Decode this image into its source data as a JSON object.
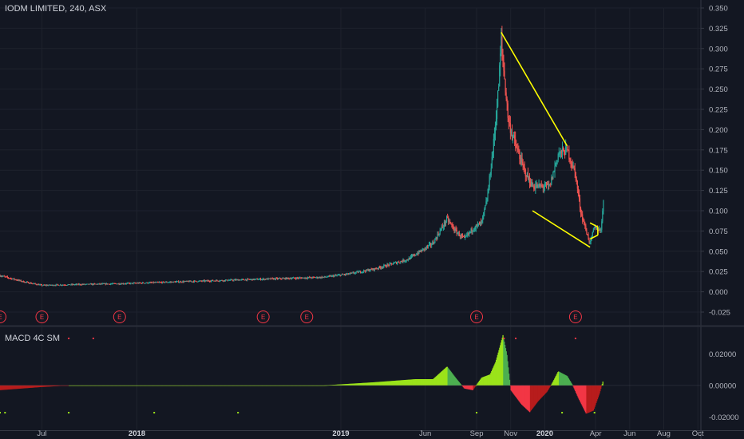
{
  "header": {
    "title": "IODM LIMITED, 240, ASX"
  },
  "indicator": {
    "title": "MACD 4C SM"
  },
  "colors": {
    "background": "#131722",
    "up": "#26a69a",
    "down": "#ef5350",
    "trendline": "#ffff00",
    "macd_pos_strong": "#9be31a",
    "macd_pos_weak": "#4caf50",
    "macd_neg_strong": "#f23645",
    "macd_neg_weak": "#b71c1c",
    "earnings": "#f23645"
  },
  "chart_data": [
    {
      "type": "candlestick",
      "title": "IODM LIMITED, 240, ASX",
      "y_axis_ticks": [
        "0.350",
        "0.325",
        "0.300",
        "0.275",
        "0.250",
        "0.225",
        "0.200",
        "0.175",
        "0.150",
        "0.125",
        "0.100",
        "0.075",
        "0.050",
        "0.025",
        "0.000",
        "-0.025"
      ],
      "x_axis_ticks": [
        "Jul",
        "2018",
        "2019",
        "Jun",
        "Sep",
        "Nov",
        "2020",
        "Apr",
        "Jun",
        "Aug",
        "Oct"
      ],
      "ylim": [
        -0.025,
        0.35
      ],
      "price_path": [
        {
          "x": "2017-05-01",
          "y": 0.02
        },
        {
          "x": "2017-06-15",
          "y": 0.012
        },
        {
          "x": "2017-07-15",
          "y": 0.008
        },
        {
          "x": "2017-09-15",
          "y": 0.009
        },
        {
          "x": "2017-12-01",
          "y": 0.01
        },
        {
          "x": "2018-03-01",
          "y": 0.012
        },
        {
          "x": "2018-06-01",
          "y": 0.014
        },
        {
          "x": "2018-09-01",
          "y": 0.016
        },
        {
          "x": "2018-12-01",
          "y": 0.018
        },
        {
          "x": "2019-01-15",
          "y": 0.022
        },
        {
          "x": "2019-03-01",
          "y": 0.028
        },
        {
          "x": "2019-05-01",
          "y": 0.04
        },
        {
          "x": "2019-06-15",
          "y": 0.06
        },
        {
          "x": "2019-07-10",
          "y": 0.09
        },
        {
          "x": "2019-07-25",
          "y": 0.075
        },
        {
          "x": "2019-08-10",
          "y": 0.065
        },
        {
          "x": "2019-08-25",
          "y": 0.078
        },
        {
          "x": "2019-09-10",
          "y": 0.085
        },
        {
          "x": "2019-09-20",
          "y": 0.115
        },
        {
          "x": "2019-10-01",
          "y": 0.18
        },
        {
          "x": "2019-10-10",
          "y": 0.25
        },
        {
          "x": "2019-10-15",
          "y": 0.31
        },
        {
          "x": "2019-10-20",
          "y": 0.27
        },
        {
          "x": "2019-10-28",
          "y": 0.21
        },
        {
          "x": "2019-11-10",
          "y": 0.18
        },
        {
          "x": "2019-11-25",
          "y": 0.15
        },
        {
          "x": "2019-12-10",
          "y": 0.13
        },
        {
          "x": "2019-12-25",
          "y": 0.13
        },
        {
          "x": "2020-01-10",
          "y": 0.13
        },
        {
          "x": "2020-01-25",
          "y": 0.17
        },
        {
          "x": "2020-02-10",
          "y": 0.175
        },
        {
          "x": "2020-02-25",
          "y": 0.145
        },
        {
          "x": "2020-03-05",
          "y": 0.1
        },
        {
          "x": "2020-03-15",
          "y": 0.075
        },
        {
          "x": "2020-03-22",
          "y": 0.06
        },
        {
          "x": "2020-03-30",
          "y": 0.08
        },
        {
          "x": "2020-04-10",
          "y": 0.075
        },
        {
          "x": "2020-04-15",
          "y": 0.11
        }
      ],
      "trendlines": [
        {
          "from": {
            "x": "2019-10-15",
            "y": 0.32
          },
          "to": {
            "x": "2020-02-10",
            "y": 0.18
          }
        },
        {
          "from": {
            "x": "2019-12-10",
            "y": 0.1
          },
          "to": {
            "x": "2020-03-22",
            "y": 0.055
          }
        },
        {
          "from": {
            "x": "2020-03-22",
            "y": 0.085
          },
          "to": {
            "x": "2020-04-05",
            "y": 0.08
          }
        },
        {
          "from": {
            "x": "2020-04-05",
            "y": 0.08
          },
          "to": {
            "x": "2020-04-05",
            "y": 0.07
          }
        },
        {
          "from": {
            "x": "2020-04-05",
            "y": 0.07
          },
          "to": {
            "x": "2020-03-22",
            "y": 0.065
          }
        }
      ],
      "earnings_markers": {
        "label": "E",
        "dates": [
          "2017-05-01",
          "2017-07-15",
          "2017-12-01",
          "2018-08-15",
          "2018-11-01",
          "2019-09-01",
          "2020-02-25"
        ]
      }
    },
    {
      "type": "histogram",
      "title": "MACD 4C SM",
      "y_axis_ticks": [
        "0.02000",
        "0.00000",
        "-0.02000"
      ],
      "ylim": [
        -0.028,
        0.036
      ],
      "values_path": [
        {
          "x": "2017-05-01",
          "y": -0.003
        },
        {
          "x": "2017-07-15",
          "y": -0.001
        },
        {
          "x": "2017-09-01",
          "y": 0.0
        },
        {
          "x": "2018-02-01",
          "y": 0.0
        },
        {
          "x": "2018-09-01",
          "y": 0.0
        },
        {
          "x": "2018-12-01",
          "y": 0.0
        },
        {
          "x": "2019-03-01",
          "y": 0.002
        },
        {
          "x": "2019-05-15",
          "y": 0.004
        },
        {
          "x": "2019-06-15",
          "y": 0.004
        },
        {
          "x": "2019-07-10",
          "y": 0.012
        },
        {
          "x": "2019-07-25",
          "y": 0.005
        },
        {
          "x": "2019-08-10",
          "y": -0.002
        },
        {
          "x": "2019-08-25",
          "y": -0.003
        },
        {
          "x": "2019-09-10",
          "y": 0.005
        },
        {
          "x": "2019-09-25",
          "y": 0.007
        },
        {
          "x": "2019-10-05",
          "y": 0.015
        },
        {
          "x": "2019-10-12",
          "y": 0.024
        },
        {
          "x": "2019-10-18",
          "y": 0.032
        },
        {
          "x": "2019-10-25",
          "y": 0.02
        },
        {
          "x": "2019-11-01",
          "y": -0.003
        },
        {
          "x": "2019-11-20",
          "y": -0.012
        },
        {
          "x": "2019-12-05",
          "y": -0.017
        },
        {
          "x": "2019-12-20",
          "y": -0.01
        },
        {
          "x": "2020-01-05",
          "y": -0.004
        },
        {
          "x": "2020-01-15",
          "y": 0.002
        },
        {
          "x": "2020-01-25",
          "y": 0.009
        },
        {
          "x": "2020-02-10",
          "y": 0.006
        },
        {
          "x": "2020-02-20",
          "y": 0.0
        },
        {
          "x": "2020-03-01",
          "y": -0.008
        },
        {
          "x": "2020-03-15",
          "y": -0.018
        },
        {
          "x": "2020-03-28",
          "y": -0.016
        },
        {
          "x": "2020-04-08",
          "y": -0.005
        },
        {
          "x": "2020-04-15",
          "y": 0.004
        }
      ],
      "signal_dots": {
        "top": [
          "2017-09-01",
          "2017-10-15",
          "2019-10-20",
          "2019-11-10",
          "2020-02-25"
        ],
        "bottom": [
          "2017-05-01",
          "2017-05-10",
          "2017-09-01",
          "2018-02-01",
          "2018-07-01",
          "2019-09-01",
          "2020-02-01",
          "2020-03-30"
        ]
      }
    }
  ]
}
